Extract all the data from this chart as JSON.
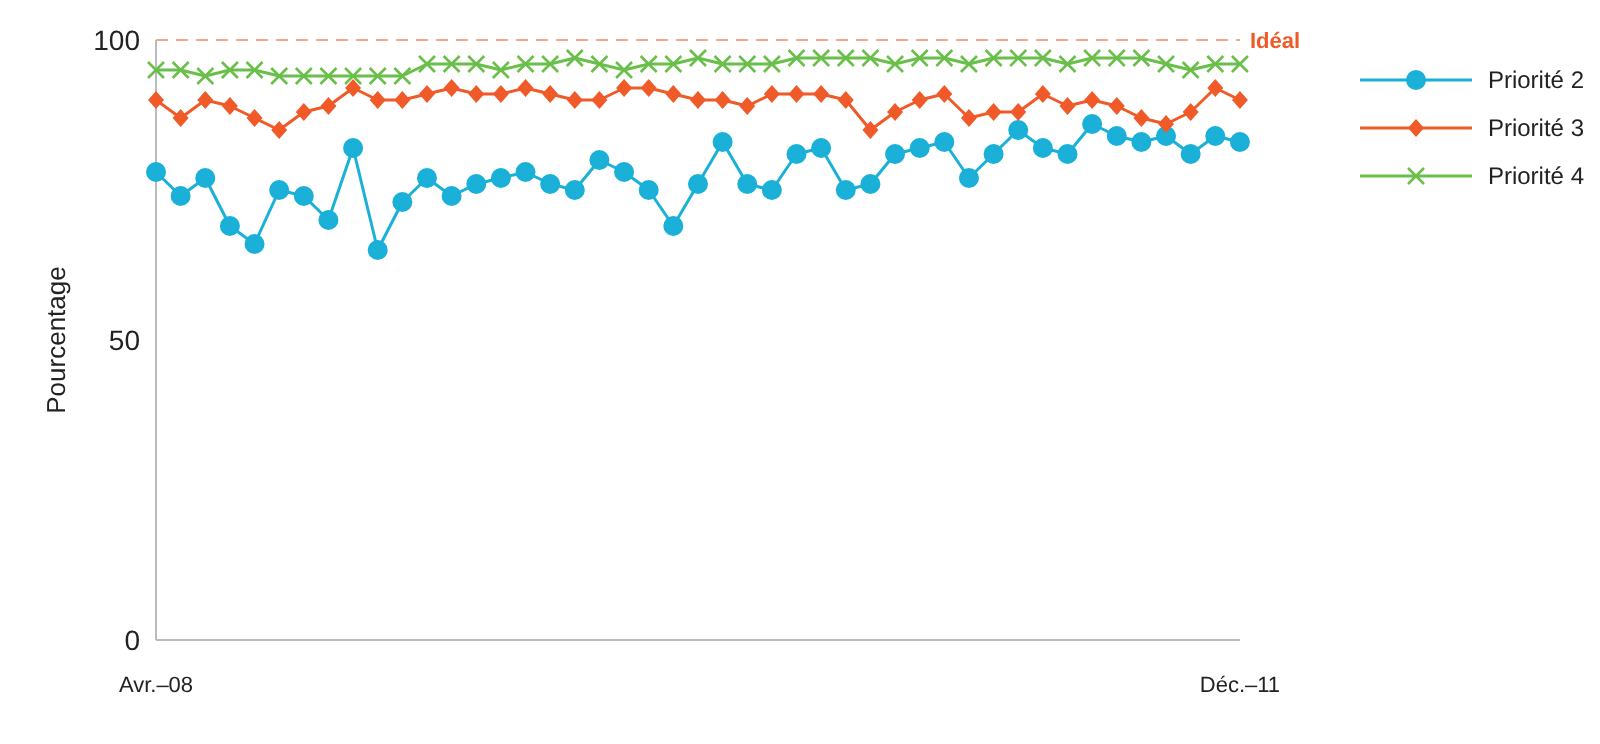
{
  "chart_data": {
    "type": "line",
    "ylabel": "Pourcentage",
    "categories": [
      "Avr.–08",
      null,
      null,
      null,
      null,
      null,
      null,
      null,
      null,
      null,
      null,
      null,
      null,
      null,
      null,
      null,
      null,
      null,
      null,
      null,
      null,
      null,
      null,
      null,
      null,
      null,
      null,
      null,
      null,
      null,
      null,
      null,
      null,
      null,
      null,
      null,
      null,
      null,
      null,
      null,
      null,
      null,
      null,
      null,
      "Déc.–11"
    ],
    "series": [
      {
        "name": "Priorité 2",
        "color": "#1ab0d8",
        "marker": "circle",
        "values": [
          78,
          74,
          77,
          69,
          66,
          75,
          74,
          70,
          82,
          65,
          73,
          77,
          74,
          76,
          77,
          78,
          76,
          75,
          80,
          78,
          75,
          69,
          76,
          83,
          76,
          75,
          81,
          82,
          75,
          76,
          81,
          82,
          83,
          77,
          81,
          85,
          82,
          81,
          86,
          84,
          83,
          84,
          81,
          84,
          83
        ]
      },
      {
        "name": "Priorité 3",
        "color": "#f05a28",
        "marker": "diamond",
        "values": [
          90,
          87,
          90,
          89,
          87,
          85,
          88,
          89,
          92,
          90,
          90,
          91,
          92,
          91,
          91,
          92,
          91,
          90,
          90,
          92,
          92,
          91,
          90,
          90,
          89,
          91,
          91,
          91,
          90,
          85,
          88,
          90,
          91,
          87,
          88,
          88,
          91,
          89,
          90,
          89,
          87,
          86,
          88,
          92,
          90
        ]
      },
      {
        "name": "Priorité 4",
        "color": "#6abf4b",
        "marker": "cross",
        "values": [
          95,
          95,
          94,
          95,
          95,
          94,
          94,
          94,
          94,
          94,
          94,
          96,
          96,
          96,
          95,
          96,
          96,
          97,
          96,
          95,
          96,
          96,
          97,
          96,
          96,
          96,
          97,
          97,
          97,
          97,
          96,
          97,
          97,
          96,
          97,
          97,
          97,
          96,
          97,
          97,
          97,
          96,
          95,
          96,
          96
        ]
      }
    ],
    "ylim": [
      0,
      100
    ],
    "yticks": [
      0,
      50,
      100
    ],
    "grid": false,
    "legend": "right",
    "line_style": "solid",
    "ref_lines": [
      {
        "axis": "y",
        "value": 100,
        "label": "Idéal",
        "color": "#f4a58a",
        "line_style": "dashed"
      }
    ]
  }
}
